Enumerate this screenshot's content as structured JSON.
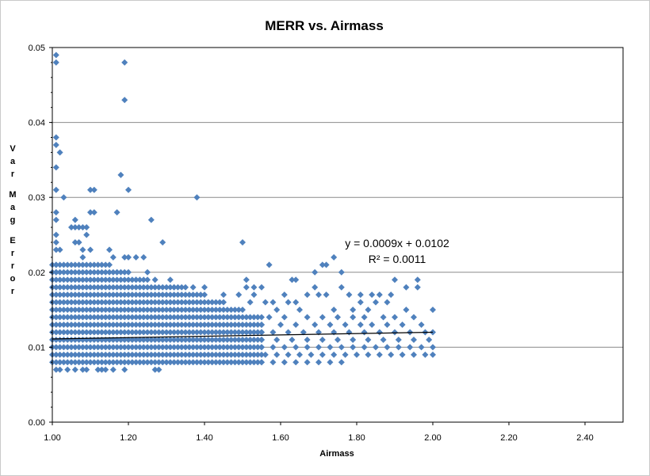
{
  "chart_data": {
    "type": "scatter",
    "title": "MERR vs. Airmass",
    "xlabel": "Airmass",
    "ylabel": "Var Mag Error",
    "xlim": [
      1.0,
      2.5
    ],
    "ylim": [
      0.0,
      0.05
    ],
    "x_ticks": [
      "1.00",
      "1.20",
      "1.40",
      "1.60",
      "1.80",
      "2.00",
      "2.20",
      "2.40"
    ],
    "y_ticks": [
      "0.00",
      "0.01",
      "0.02",
      "0.03",
      "0.04",
      "0.05"
    ],
    "grid": "horizontal major gridlines",
    "marker": "diamond",
    "marker_color": "#4f81bd",
    "trendline": {
      "type": "linear",
      "slope": 0.0009,
      "intercept": 0.0102,
      "x_range": [
        1.0,
        2.0
      ],
      "equation_label": "y = 0.0009x + 0.0102",
      "r2_label": "R² = 0.0011",
      "color": "#000000"
    },
    "series": [
      {
        "points": [
          [
            1.01,
            0.049
          ],
          [
            1.01,
            0.048
          ],
          [
            1.19,
            0.048
          ],
          [
            1.19,
            0.043
          ],
          [
            1.01,
            0.038
          ],
          [
            1.01,
            0.037
          ],
          [
            1.02,
            0.036
          ],
          [
            1.01,
            0.034
          ],
          [
            1.18,
            0.033
          ],
          [
            1.01,
            0.031
          ],
          [
            1.1,
            0.031
          ],
          [
            1.11,
            0.031
          ],
          [
            1.2,
            0.031
          ],
          [
            1.03,
            0.03
          ],
          [
            1.38,
            0.03
          ],
          [
            1.01,
            0.028
          ],
          [
            1.1,
            0.028
          ],
          [
            1.11,
            0.028
          ],
          [
            1.17,
            0.028
          ],
          [
            1.01,
            0.027
          ],
          [
            1.06,
            0.027
          ],
          [
            1.26,
            0.027
          ],
          [
            1.05,
            0.026
          ],
          [
            1.06,
            0.026
          ],
          [
            1.07,
            0.026
          ],
          [
            1.08,
            0.026
          ],
          [
            1.09,
            0.026
          ],
          [
            1.01,
            0.025
          ],
          [
            1.09,
            0.025
          ],
          [
            1.01,
            0.024
          ],
          [
            1.06,
            0.024
          ],
          [
            1.07,
            0.024
          ],
          [
            1.29,
            0.024
          ],
          [
            1.5,
            0.024
          ],
          [
            1.01,
            0.023
          ],
          [
            1.02,
            0.023
          ],
          [
            1.08,
            0.023
          ],
          [
            1.1,
            0.023
          ],
          [
            1.15,
            0.023
          ],
          [
            1.08,
            0.022
          ],
          [
            1.16,
            0.022
          ],
          [
            1.19,
            0.022
          ],
          [
            1.2,
            0.022
          ],
          [
            1.22,
            0.022
          ],
          [
            1.24,
            0.022
          ],
          [
            1.74,
            0.022
          ],
          [
            1.01,
            0.021
          ],
          [
            1.57,
            0.021
          ],
          [
            1.71,
            0.021
          ],
          [
            1.72,
            0.021
          ],
          [
            1.01,
            0.02
          ],
          [
            1.17,
            0.02
          ],
          [
            1.25,
            0.02
          ],
          [
            1.69,
            0.02
          ],
          [
            1.76,
            0.02
          ],
          [
            1.22,
            0.019
          ],
          [
            1.27,
            0.019
          ],
          [
            1.31,
            0.019
          ],
          [
            1.51,
            0.019
          ],
          [
            1.63,
            0.019
          ],
          [
            1.64,
            0.019
          ],
          [
            1.9,
            0.019
          ],
          [
            1.96,
            0.019
          ],
          [
            1.32,
            0.018
          ],
          [
            1.37,
            0.018
          ],
          [
            1.4,
            0.018
          ],
          [
            1.51,
            0.018
          ],
          [
            1.53,
            0.018
          ],
          [
            1.55,
            0.018
          ],
          [
            1.69,
            0.018
          ],
          [
            1.76,
            0.018
          ],
          [
            1.93,
            0.018
          ],
          [
            1.96,
            0.018
          ],
          [
            1.45,
            0.017
          ],
          [
            1.49,
            0.017
          ],
          [
            1.53,
            0.017
          ],
          [
            1.61,
            0.017
          ],
          [
            1.67,
            0.017
          ],
          [
            1.7,
            0.017
          ],
          [
            1.72,
            0.017
          ],
          [
            1.78,
            0.017
          ],
          [
            1.81,
            0.017
          ],
          [
            1.84,
            0.017
          ],
          [
            1.86,
            0.017
          ],
          [
            1.89,
            0.017
          ],
          [
            1.52,
            0.016
          ],
          [
            1.56,
            0.016
          ],
          [
            1.58,
            0.016
          ],
          [
            1.62,
            0.016
          ],
          [
            1.64,
            0.016
          ],
          [
            1.81,
            0.016
          ],
          [
            1.85,
            0.016
          ],
          [
            1.88,
            0.016
          ],
          [
            1.59,
            0.015
          ],
          [
            1.65,
            0.015
          ],
          [
            1.74,
            0.015
          ],
          [
            1.79,
            0.015
          ],
          [
            1.83,
            0.015
          ],
          [
            1.93,
            0.015
          ],
          [
            2.0,
            0.015
          ],
          [
            1.57,
            0.014
          ],
          [
            1.61,
            0.014
          ],
          [
            1.67,
            0.014
          ],
          [
            1.71,
            0.014
          ],
          [
            1.75,
            0.014
          ],
          [
            1.79,
            0.014
          ],
          [
            1.82,
            0.014
          ],
          [
            1.87,
            0.014
          ],
          [
            1.9,
            0.014
          ],
          [
            1.95,
            0.014
          ],
          [
            1.55,
            0.013
          ],
          [
            1.6,
            0.013
          ],
          [
            1.64,
            0.013
          ],
          [
            1.69,
            0.013
          ],
          [
            1.73,
            0.013
          ],
          [
            1.77,
            0.013
          ],
          [
            1.81,
            0.013
          ],
          [
            1.84,
            0.013
          ],
          [
            1.88,
            0.013
          ],
          [
            1.92,
            0.013
          ],
          [
            1.97,
            0.013
          ],
          [
            1.55,
            0.012
          ],
          [
            1.58,
            0.012
          ],
          [
            1.62,
            0.012
          ],
          [
            1.66,
            0.012
          ],
          [
            1.7,
            0.012
          ],
          [
            1.74,
            0.012
          ],
          [
            1.78,
            0.012
          ],
          [
            1.82,
            0.012
          ],
          [
            1.86,
            0.012
          ],
          [
            1.9,
            0.012
          ],
          [
            1.94,
            0.012
          ],
          [
            1.98,
            0.012
          ],
          [
            2.0,
            0.012
          ],
          [
            1.55,
            0.011
          ],
          [
            1.59,
            0.011
          ],
          [
            1.63,
            0.011
          ],
          [
            1.67,
            0.011
          ],
          [
            1.71,
            0.011
          ],
          [
            1.75,
            0.011
          ],
          [
            1.79,
            0.011
          ],
          [
            1.83,
            0.011
          ],
          [
            1.87,
            0.011
          ],
          [
            1.91,
            0.011
          ],
          [
            1.95,
            0.011
          ],
          [
            1.99,
            0.011
          ],
          [
            1.55,
            0.01
          ],
          [
            1.58,
            0.01
          ],
          [
            1.61,
            0.01
          ],
          [
            1.64,
            0.01
          ],
          [
            1.67,
            0.01
          ],
          [
            1.7,
            0.01
          ],
          [
            1.73,
            0.01
          ],
          [
            1.76,
            0.01
          ],
          [
            1.79,
            0.01
          ],
          [
            1.82,
            0.01
          ],
          [
            1.85,
            0.01
          ],
          [
            1.88,
            0.01
          ],
          [
            1.91,
            0.01
          ],
          [
            1.94,
            0.01
          ],
          [
            1.97,
            0.01
          ],
          [
            2.0,
            0.01
          ],
          [
            1.56,
            0.009
          ],
          [
            1.59,
            0.009
          ],
          [
            1.62,
            0.009
          ],
          [
            1.65,
            0.009
          ],
          [
            1.68,
            0.009
          ],
          [
            1.71,
            0.009
          ],
          [
            1.74,
            0.009
          ],
          [
            1.77,
            0.009
          ],
          [
            1.8,
            0.009
          ],
          [
            1.83,
            0.009
          ],
          [
            1.86,
            0.009
          ],
          [
            1.89,
            0.009
          ],
          [
            1.92,
            0.009
          ],
          [
            1.95,
            0.009
          ],
          [
            1.98,
            0.009
          ],
          [
            2.0,
            0.009
          ],
          [
            1.55,
            0.008
          ],
          [
            1.58,
            0.008
          ],
          [
            1.61,
            0.008
          ],
          [
            1.64,
            0.008
          ],
          [
            1.67,
            0.008
          ],
          [
            1.7,
            0.008
          ],
          [
            1.73,
            0.008
          ],
          [
            1.76,
            0.008
          ],
          [
            1.01,
            0.007
          ],
          [
            1.02,
            0.007
          ],
          [
            1.04,
            0.007
          ],
          [
            1.06,
            0.007
          ],
          [
            1.08,
            0.007
          ],
          [
            1.09,
            0.007
          ],
          [
            1.12,
            0.007
          ],
          [
            1.13,
            0.007
          ],
          [
            1.14,
            0.007
          ],
          [
            1.16,
            0.007
          ],
          [
            1.19,
            0.007
          ],
          [
            1.27,
            0.007
          ],
          [
            1.28,
            0.007
          ]
        ],
        "dense_fill": {
          "description": "dense band of points",
          "x_range": [
            1.0,
            1.55
          ],
          "y_values": [
            0.008,
            0.009,
            0.01,
            0.011,
            0.012,
            0.013,
            0.014,
            0.015,
            0.016,
            0.017,
            0.018,
            0.019,
            0.02,
            0.021
          ],
          "y_max_by_x": [
            [
              1.0,
              0.021
            ],
            [
              1.15,
              0.021
            ],
            [
              1.25,
              0.019
            ],
            [
              1.35,
              0.018
            ],
            [
              1.45,
              0.016
            ],
            [
              1.55,
              0.014
            ]
          ],
          "x_step": 0.01
        }
      }
    ]
  }
}
